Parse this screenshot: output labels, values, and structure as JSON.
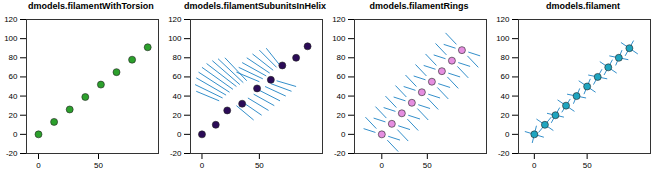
{
  "chart_data": [
    {
      "type": "scatter",
      "title": "dmodels.filamentWithTorsion",
      "color": "#2ca02c",
      "x": [
        0,
        13,
        26,
        39,
        52,
        65,
        78,
        91
      ],
      "values": [
        0,
        13,
        26,
        39,
        52,
        65,
        78,
        91
      ],
      "segments": [],
      "xlim": [
        -10,
        100
      ],
      "xticks": [
        0,
        50
      ],
      "ylim": [
        -20,
        120
      ],
      "yticks": [
        -20,
        0,
        20,
        40,
        60,
        80,
        100,
        120
      ],
      "grid": false
    },
    {
      "type": "scatter",
      "title": "dmodels.filamentSubunitsInHelix",
      "color": "#2b0b57",
      "x": [
        0,
        12,
        22,
        35,
        48,
        60,
        70,
        82,
        92
      ],
      "values": [
        0,
        10,
        25,
        32,
        48,
        57,
        72,
        80,
        92
      ],
      "segments": [
        [
          15,
          35,
          -5,
          45
        ],
        [
          18,
          38,
          -6,
          52
        ],
        [
          21,
          41,
          -5,
          59
        ],
        [
          24,
          44,
          -3,
          65
        ],
        [
          27,
          47,
          0,
          70
        ],
        [
          30,
          50,
          4,
          74
        ],
        [
          33,
          52,
          9,
          77
        ],
        [
          36,
          54,
          14,
          79
        ],
        [
          39,
          56,
          20,
          80
        ],
        [
          30,
          30,
          45,
          15
        ],
        [
          35,
          34,
          52,
          20
        ],
        [
          40,
          38,
          58,
          25
        ],
        [
          45,
          42,
          63,
          30
        ],
        [
          50,
          46,
          68,
          35
        ],
        [
          55,
          50,
          73,
          40
        ],
        [
          60,
          53,
          78,
          45
        ],
        [
          65,
          56,
          82,
          50
        ],
        [
          50,
          55,
          30,
          65
        ],
        [
          53,
          58,
          32,
          70
        ],
        [
          56,
          61,
          35,
          75
        ],
        [
          59,
          64,
          39,
          80
        ],
        [
          62,
          67,
          44,
          84
        ],
        [
          65,
          70,
          50,
          88
        ],
        [
          68,
          72,
          56,
          90
        ]
      ],
      "xlim": [
        -10,
        105
      ],
      "xticks": [
        0,
        50
      ],
      "ylim": [
        -20,
        120
      ],
      "yticks": [
        -20,
        0,
        20,
        40,
        60,
        80,
        100,
        120
      ],
      "grid": false
    },
    {
      "type": "scatter",
      "title": "dmodels.filamentRings",
      "color": "#e58ee0",
      "x": [
        0,
        11,
        22,
        33,
        44,
        55,
        66,
        77,
        88
      ],
      "values": [
        0,
        11,
        22,
        33,
        44,
        55,
        66,
        77,
        88
      ],
      "segments": [
        [
          -18,
          18,
          -6,
          6
        ],
        [
          6,
          -6,
          18,
          -18
        ],
        [
          -20,
          6,
          -7,
          2
        ],
        [
          7,
          -2,
          20,
          -6
        ],
        [
          -7,
          29,
          5,
          17
        ],
        [
          17,
          5,
          29,
          -7
        ],
        [
          -9,
          17,
          4,
          13
        ],
        [
          18,
          9,
          31,
          5
        ],
        [
          4,
          40,
          16,
          28
        ],
        [
          28,
          16,
          40,
          4
        ],
        [
          2,
          28,
          15,
          24
        ],
        [
          29,
          20,
          42,
          16
        ],
        [
          15,
          51,
          27,
          39
        ],
        [
          39,
          27,
          51,
          15
        ],
        [
          13,
          39,
          26,
          35
        ],
        [
          40,
          31,
          53,
          27
        ],
        [
          26,
          62,
          38,
          50
        ],
        [
          50,
          38,
          62,
          26
        ],
        [
          24,
          50,
          37,
          46
        ],
        [
          51,
          42,
          64,
          38
        ],
        [
          37,
          73,
          49,
          61
        ],
        [
          61,
          49,
          73,
          37
        ],
        [
          35,
          61,
          48,
          57
        ],
        [
          62,
          53,
          75,
          49
        ],
        [
          48,
          84,
          60,
          72
        ],
        [
          72,
          60,
          84,
          48
        ],
        [
          46,
          72,
          59,
          68
        ],
        [
          73,
          64,
          86,
          60
        ],
        [
          59,
          95,
          71,
          83
        ],
        [
          83,
          71,
          95,
          59
        ],
        [
          57,
          83,
          70,
          79
        ],
        [
          84,
          75,
          97,
          71
        ],
        [
          70,
          106,
          82,
          94
        ],
        [
          94,
          82,
          106,
          70
        ],
        [
          68,
          94,
          81,
          90
        ],
        [
          95,
          86,
          108,
          82
        ]
      ],
      "xlim": [
        -30,
        115
      ],
      "xticks": [
        0,
        50
      ],
      "ylim": [
        -20,
        120
      ],
      "yticks": [
        -20,
        0,
        20,
        40,
        60,
        80,
        100,
        120
      ],
      "grid": false
    },
    {
      "type": "scatter",
      "title": "dmodels.filament",
      "color": "#1fa5c0",
      "x": [
        0,
        10,
        20,
        30,
        40,
        50,
        60,
        70,
        80,
        90
      ],
      "values": [
        0,
        10,
        20,
        30,
        40,
        50,
        60,
        70,
        80,
        90
      ],
      "segments": [
        [
          -9,
          3,
          9,
          -3
        ],
        [
          -2,
          -9,
          2,
          9
        ],
        [
          2,
          16,
          18,
          4
        ],
        [
          4,
          2,
          16,
          18
        ],
        [
          12,
          22,
          28,
          18
        ],
        [
          16,
          12,
          24,
          28
        ],
        [
          22,
          36,
          38,
          24
        ],
        [
          26,
          23,
          34,
          37
        ],
        [
          31,
          42,
          49,
          38
        ],
        [
          37,
          32,
          43,
          48
        ],
        [
          42,
          56,
          58,
          44
        ],
        [
          47,
          42,
          53,
          58
        ],
        [
          51,
          62,
          69,
          58
        ],
        [
          56,
          52,
          64,
          68
        ],
        [
          62,
          76,
          78,
          64
        ],
        [
          66,
          62,
          74,
          78
        ],
        [
          71,
          82,
          89,
          78
        ],
        [
          77,
          72,
          83,
          88
        ],
        [
          82,
          96,
          98,
          84
        ],
        [
          86,
          82,
          94,
          98
        ]
      ],
      "xlim": [
        -15,
        110
      ],
      "xticks": [
        0,
        50
      ],
      "ylim": [
        -20,
        120
      ],
      "yticks": [
        -20,
        0,
        20,
        40,
        60,
        80,
        100,
        120
      ],
      "grid": false
    }
  ]
}
